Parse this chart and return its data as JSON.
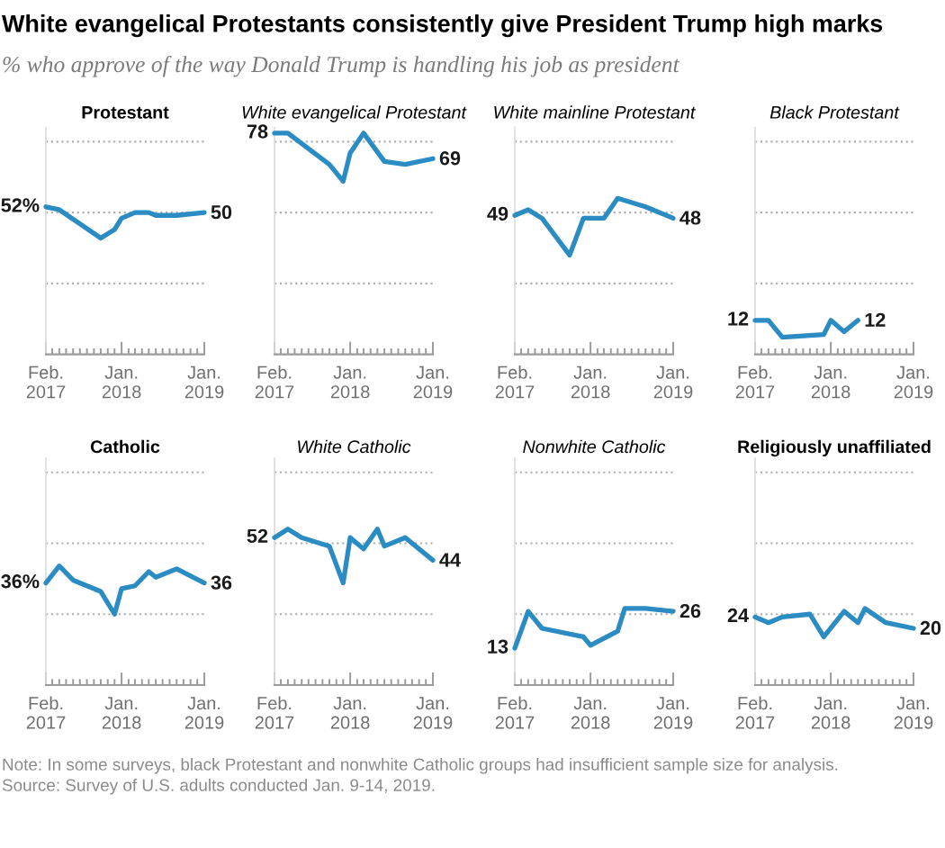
{
  "chart_data": [
    {
      "type": "other",
      "title": "White evangelical Protestants consistently give President Trump high marks",
      "subtitle": "% who approve of the way Donald Trump is handling his job as president"
    },
    {
      "type": "line",
      "title": "Protestant",
      "x": [
        "2017-02",
        "2017-04",
        "2017-10",
        "2017-12",
        "2018-01",
        "2018-03",
        "2018-05",
        "2018-06",
        "2018-09",
        "2019-01"
      ],
      "values": [
        52,
        51,
        41,
        44,
        48,
        50,
        50,
        49,
        49,
        50
      ],
      "value_labels": [
        "52%",
        null,
        null,
        null,
        null,
        null,
        null,
        null,
        null,
        "50"
      ],
      "color": "#2b8cc4",
      "xlim": [
        "2017-02",
        "2019-01"
      ],
      "xticks": [
        {
          "value": "2017-02",
          "label": "Feb.\n2017"
        },
        {
          "value": "2017-03",
          "label": null
        },
        {
          "value": "2017-04",
          "label": null
        },
        {
          "value": "2017-05",
          "label": null
        },
        {
          "value": "2017-06",
          "label": null
        },
        {
          "value": "2017-07",
          "label": null
        },
        {
          "value": "2017-08",
          "label": null
        },
        {
          "value": "2017-09",
          "label": null
        },
        {
          "value": "2017-10",
          "label": null
        },
        {
          "value": "2017-11",
          "label": null
        },
        {
          "value": "2017-12",
          "label": null
        },
        {
          "value": "2018-01",
          "label": "Jan.\n2018"
        },
        {
          "value": "2018-02",
          "label": null
        },
        {
          "value": "2018-03",
          "label": null
        },
        {
          "value": "2018-04",
          "label": null
        },
        {
          "value": "2018-05",
          "label": null
        },
        {
          "value": "2018-06",
          "label": null
        },
        {
          "value": "2018-07",
          "label": null
        },
        {
          "value": "2018-08",
          "label": null
        },
        {
          "value": "2018-09",
          "label": null
        },
        {
          "value": "2018-10",
          "label": null
        },
        {
          "value": "2018-11",
          "label": null
        },
        {
          "value": "2018-12",
          "label": null
        },
        {
          "value": "2019-01",
          "label": "Jan.\n2019"
        }
      ],
      "ylim": [
        0,
        80
      ],
      "yticks": [
        {
          "value": 25,
          "label": null
        },
        {
          "value": 50,
          "label": null
        },
        {
          "value": 75,
          "label": null
        }
      ],
      "grid": "y",
      "tick_labels": "x"
    },
    {
      "type": "line",
      "title": "White evangelical Protestant",
      "x": [
        "2017-02",
        "2017-04",
        "2017-10",
        "2017-12",
        "2018-01",
        "2018-03",
        "2018-06",
        "2018-09",
        "2019-01"
      ],
      "values": [
        78,
        78,
        67,
        61,
        71,
        78,
        68,
        67,
        69
      ],
      "value_labels": [
        "78",
        null,
        null,
        null,
        null,
        null,
        null,
        null,
        "69"
      ],
      "color": "#2b8cc4",
      "xlim": [
        "2017-02",
        "2019-01"
      ],
      "xticks": [
        {
          "value": "2017-02",
          "label": "Feb.\n2017"
        },
        {
          "value": "2017-03",
          "label": null
        },
        {
          "value": "2017-04",
          "label": null
        },
        {
          "value": "2017-05",
          "label": null
        },
        {
          "value": "2017-06",
          "label": null
        },
        {
          "value": "2017-07",
          "label": null
        },
        {
          "value": "2017-08",
          "label": null
        },
        {
          "value": "2017-09",
          "label": null
        },
        {
          "value": "2017-10",
          "label": null
        },
        {
          "value": "2017-11",
          "label": null
        },
        {
          "value": "2017-12",
          "label": null
        },
        {
          "value": "2018-01",
          "label": "Jan.\n2018"
        },
        {
          "value": "2018-02",
          "label": null
        },
        {
          "value": "2018-03",
          "label": null
        },
        {
          "value": "2018-04",
          "label": null
        },
        {
          "value": "2018-05",
          "label": null
        },
        {
          "value": "2018-06",
          "label": null
        },
        {
          "value": "2018-07",
          "label": null
        },
        {
          "value": "2018-08",
          "label": null
        },
        {
          "value": "2018-09",
          "label": null
        },
        {
          "value": "2018-10",
          "label": null
        },
        {
          "value": "2018-11",
          "label": null
        },
        {
          "value": "2018-12",
          "label": null
        },
        {
          "value": "2019-01",
          "label": "Jan.\n2019"
        }
      ],
      "ylim": [
        0,
        80
      ],
      "yticks": [
        {
          "value": 25,
          "label": null
        },
        {
          "value": 50,
          "label": null
        },
        {
          "value": 75,
          "label": null
        }
      ],
      "grid": "y",
      "tick_labels": "x"
    },
    {
      "type": "line",
      "title": "White mainline Protestant",
      "x": [
        "2017-02",
        "2017-04",
        "2017-06",
        "2017-10",
        "2017-12",
        "2018-03",
        "2018-05",
        "2018-09",
        "2019-01"
      ],
      "values": [
        49,
        51,
        48,
        35,
        48,
        48,
        55,
        52,
        48
      ],
      "value_labels": [
        "49",
        null,
        null,
        null,
        null,
        null,
        null,
        null,
        "48"
      ],
      "color": "#2b8cc4",
      "xlim": [
        "2017-02",
        "2019-01"
      ],
      "xticks": [
        {
          "value": "2017-02",
          "label": "Feb.\n2017"
        },
        {
          "value": "2017-03",
          "label": null
        },
        {
          "value": "2017-04",
          "label": null
        },
        {
          "value": "2017-05",
          "label": null
        },
        {
          "value": "2017-06",
          "label": null
        },
        {
          "value": "2017-07",
          "label": null
        },
        {
          "value": "2017-08",
          "label": null
        },
        {
          "value": "2017-09",
          "label": null
        },
        {
          "value": "2017-10",
          "label": null
        },
        {
          "value": "2017-11",
          "label": null
        },
        {
          "value": "2017-12",
          "label": null
        },
        {
          "value": "2018-01",
          "label": "Jan.\n2018"
        },
        {
          "value": "2018-02",
          "label": null
        },
        {
          "value": "2018-03",
          "label": null
        },
        {
          "value": "2018-04",
          "label": null
        },
        {
          "value": "2018-05",
          "label": null
        },
        {
          "value": "2018-06",
          "label": null
        },
        {
          "value": "2018-07",
          "label": null
        },
        {
          "value": "2018-08",
          "label": null
        },
        {
          "value": "2018-09",
          "label": null
        },
        {
          "value": "2018-10",
          "label": null
        },
        {
          "value": "2018-11",
          "label": null
        },
        {
          "value": "2018-12",
          "label": null
        },
        {
          "value": "2019-01",
          "label": "Jan.\n2019"
        }
      ],
      "ylim": [
        0,
        80
      ],
      "yticks": [
        {
          "value": 25,
          "label": null
        },
        {
          "value": 50,
          "label": null
        },
        {
          "value": 75,
          "label": null
        }
      ],
      "grid": "y",
      "tick_labels": "x"
    },
    {
      "type": "line",
      "title": "Black Protestant",
      "x": [
        "2017-02",
        "2017-04",
        "2017-06",
        "2017-12",
        "2018-01",
        "2018-03",
        "2018-05"
      ],
      "values": [
        12,
        12,
        6,
        7,
        12,
        8,
        12
      ],
      "value_labels": [
        "12",
        null,
        null,
        null,
        null,
        null,
        "12"
      ],
      "color": "#2b8cc4",
      "xlim": [
        "2017-02",
        "2019-01"
      ],
      "xticks": [
        {
          "value": "2017-02",
          "label": "Feb.\n2017"
        },
        {
          "value": "2017-03",
          "label": null
        },
        {
          "value": "2017-04",
          "label": null
        },
        {
          "value": "2017-05",
          "label": null
        },
        {
          "value": "2017-06",
          "label": null
        },
        {
          "value": "2017-07",
          "label": null
        },
        {
          "value": "2017-08",
          "label": null
        },
        {
          "value": "2017-09",
          "label": null
        },
        {
          "value": "2017-10",
          "label": null
        },
        {
          "value": "2017-11",
          "label": null
        },
        {
          "value": "2017-12",
          "label": null
        },
        {
          "value": "2018-01",
          "label": "Jan.\n2018"
        },
        {
          "value": "2018-02",
          "label": null
        },
        {
          "value": "2018-03",
          "label": null
        },
        {
          "value": "2018-04",
          "label": null
        },
        {
          "value": "2018-05",
          "label": null
        },
        {
          "value": "2018-06",
          "label": null
        },
        {
          "value": "2018-07",
          "label": null
        },
        {
          "value": "2018-08",
          "label": null
        },
        {
          "value": "2018-09",
          "label": null
        },
        {
          "value": "2018-10",
          "label": null
        },
        {
          "value": "2018-11",
          "label": null
        },
        {
          "value": "2018-12",
          "label": null
        },
        {
          "value": "2019-01",
          "label": "Jan.\n2019"
        }
      ],
      "ylim": [
        0,
        80
      ],
      "yticks": [
        {
          "value": 25,
          "label": null
        },
        {
          "value": 50,
          "label": null
        },
        {
          "value": 75,
          "label": null
        }
      ],
      "grid": "y",
      "tick_labels": "x"
    },
    {
      "type": "line",
      "title": "Catholic",
      "x": [
        "2017-02",
        "2017-04",
        "2017-06",
        "2017-10",
        "2017-12",
        "2018-01",
        "2018-03",
        "2018-05",
        "2018-06",
        "2018-09",
        "2019-01"
      ],
      "values": [
        36,
        42,
        37,
        33,
        25,
        34,
        35,
        40,
        38,
        41,
        36
      ],
      "value_labels": [
        "36%",
        null,
        null,
        null,
        null,
        null,
        null,
        null,
        null,
        null,
        "36"
      ],
      "color": "#2b8cc4",
      "xlim": [
        "2017-02",
        "2019-01"
      ],
      "xticks": [
        {
          "value": "2017-02",
          "label": "Feb.\n2017"
        },
        {
          "value": "2017-03",
          "label": null
        },
        {
          "value": "2017-04",
          "label": null
        },
        {
          "value": "2017-05",
          "label": null
        },
        {
          "value": "2017-06",
          "label": null
        },
        {
          "value": "2017-07",
          "label": null
        },
        {
          "value": "2017-08",
          "label": null
        },
        {
          "value": "2017-09",
          "label": null
        },
        {
          "value": "2017-10",
          "label": null
        },
        {
          "value": "2017-11",
          "label": null
        },
        {
          "value": "2017-12",
          "label": null
        },
        {
          "value": "2018-01",
          "label": "Jan.\n2018"
        },
        {
          "value": "2018-02",
          "label": null
        },
        {
          "value": "2018-03",
          "label": null
        },
        {
          "value": "2018-04",
          "label": null
        },
        {
          "value": "2018-05",
          "label": null
        },
        {
          "value": "2018-06",
          "label": null
        },
        {
          "value": "2018-07",
          "label": null
        },
        {
          "value": "2018-08",
          "label": null
        },
        {
          "value": "2018-09",
          "label": null
        },
        {
          "value": "2018-10",
          "label": null
        },
        {
          "value": "2018-11",
          "label": null
        },
        {
          "value": "2018-12",
          "label": null
        },
        {
          "value": "2019-01",
          "label": "Jan.\n2019"
        }
      ],
      "ylim": [
        0,
        80
      ],
      "yticks": [
        {
          "value": 25,
          "label": null
        },
        {
          "value": 50,
          "label": null
        },
        {
          "value": 75,
          "label": null
        }
      ],
      "grid": "y",
      "tick_labels": "x"
    },
    {
      "type": "line",
      "title": "White Catholic",
      "x": [
        "2017-02",
        "2017-04",
        "2017-06",
        "2017-10",
        "2017-12",
        "2018-01",
        "2018-03",
        "2018-05",
        "2018-06",
        "2018-09",
        "2019-01"
      ],
      "values": [
        52,
        55,
        52,
        49,
        36,
        52,
        48,
        55,
        49,
        52,
        44
      ],
      "value_labels": [
        "52",
        null,
        null,
        null,
        null,
        null,
        null,
        null,
        null,
        null,
        "44"
      ],
      "color": "#2b8cc4",
      "xlim": [
        "2017-02",
        "2019-01"
      ],
      "xticks": [
        {
          "value": "2017-02",
          "label": "Feb.\n2017"
        },
        {
          "value": "2017-03",
          "label": null
        },
        {
          "value": "2017-04",
          "label": null
        },
        {
          "value": "2017-05",
          "label": null
        },
        {
          "value": "2017-06",
          "label": null
        },
        {
          "value": "2017-07",
          "label": null
        },
        {
          "value": "2017-08",
          "label": null
        },
        {
          "value": "2017-09",
          "label": null
        },
        {
          "value": "2017-10",
          "label": null
        },
        {
          "value": "2017-11",
          "label": null
        },
        {
          "value": "2017-12",
          "label": null
        },
        {
          "value": "2018-01",
          "label": "Jan.\n2018"
        },
        {
          "value": "2018-02",
          "label": null
        },
        {
          "value": "2018-03",
          "label": null
        },
        {
          "value": "2018-04",
          "label": null
        },
        {
          "value": "2018-05",
          "label": null
        },
        {
          "value": "2018-06",
          "label": null
        },
        {
          "value": "2018-07",
          "label": null
        },
        {
          "value": "2018-08",
          "label": null
        },
        {
          "value": "2018-09",
          "label": null
        },
        {
          "value": "2018-10",
          "label": null
        },
        {
          "value": "2018-11",
          "label": null
        },
        {
          "value": "2018-12",
          "label": null
        },
        {
          "value": "2019-01",
          "label": "Jan.\n2019"
        }
      ],
      "ylim": [
        0,
        80
      ],
      "yticks": [
        {
          "value": 25,
          "label": null
        },
        {
          "value": 50,
          "label": null
        },
        {
          "value": 75,
          "label": null
        }
      ],
      "grid": "y",
      "tick_labels": "x"
    },
    {
      "type": "line",
      "title": "Nonwhite Catholic",
      "x": [
        "2017-02",
        "2017-04",
        "2017-06",
        "2017-12",
        "2018-01",
        "2018-05",
        "2018-06",
        "2018-09",
        "2019-01"
      ],
      "values": [
        13,
        26,
        20,
        17,
        14,
        19,
        27,
        27,
        26
      ],
      "value_labels": [
        "13",
        null,
        null,
        null,
        null,
        null,
        null,
        null,
        "26"
      ],
      "color": "#2b8cc4",
      "xlim": [
        "2017-02",
        "2019-01"
      ],
      "xticks": [
        {
          "value": "2017-02",
          "label": "Feb.\n2017"
        },
        {
          "value": "2017-03",
          "label": null
        },
        {
          "value": "2017-04",
          "label": null
        },
        {
          "value": "2017-05",
          "label": null
        },
        {
          "value": "2017-06",
          "label": null
        },
        {
          "value": "2017-07",
          "label": null
        },
        {
          "value": "2017-08",
          "label": null
        },
        {
          "value": "2017-09",
          "label": null
        },
        {
          "value": "2017-10",
          "label": null
        },
        {
          "value": "2017-11",
          "label": null
        },
        {
          "value": "2017-12",
          "label": null
        },
        {
          "value": "2018-01",
          "label": "Jan.\n2018"
        },
        {
          "value": "2018-02",
          "label": null
        },
        {
          "value": "2018-03",
          "label": null
        },
        {
          "value": "2018-04",
          "label": null
        },
        {
          "value": "2018-05",
          "label": null
        },
        {
          "value": "2018-06",
          "label": null
        },
        {
          "value": "2018-07",
          "label": null
        },
        {
          "value": "2018-08",
          "label": null
        },
        {
          "value": "2018-09",
          "label": null
        },
        {
          "value": "2018-10",
          "label": null
        },
        {
          "value": "2018-11",
          "label": null
        },
        {
          "value": "2018-12",
          "label": null
        },
        {
          "value": "2019-01",
          "label": "Jan.\n2019"
        }
      ],
      "ylim": [
        0,
        80
      ],
      "yticks": [
        {
          "value": 25,
          "label": null
        },
        {
          "value": 50,
          "label": null
        },
        {
          "value": 75,
          "label": null
        }
      ],
      "grid": "y",
      "tick_labels": "x"
    },
    {
      "type": "line",
      "title": "Religiously unaffiliated",
      "x": [
        "2017-02",
        "2017-04",
        "2017-06",
        "2017-10",
        "2017-12",
        "2018-03",
        "2018-05",
        "2018-06",
        "2018-09",
        "2019-01"
      ],
      "values": [
        24,
        22,
        24,
        25,
        17,
        26,
        22,
        27,
        22,
        20
      ],
      "value_labels": [
        "24",
        null,
        null,
        null,
        null,
        null,
        null,
        null,
        null,
        "20"
      ],
      "color": "#2b8cc4",
      "xlim": [
        "2017-02",
        "2019-01"
      ],
      "xticks": [
        {
          "value": "2017-02",
          "label": "Feb.\n2017"
        },
        {
          "value": "2017-03",
          "label": null
        },
        {
          "value": "2017-04",
          "label": null
        },
        {
          "value": "2017-05",
          "label": null
        },
        {
          "value": "2017-06",
          "label": null
        },
        {
          "value": "2017-07",
          "label": null
        },
        {
          "value": "2017-08",
          "label": null
        },
        {
          "value": "2017-09",
          "label": null
        },
        {
          "value": "2017-10",
          "label": null
        },
        {
          "value": "2017-11",
          "label": null
        },
        {
          "value": "2017-12",
          "label": null
        },
        {
          "value": "2018-01",
          "label": "Jan.\n2018"
        },
        {
          "value": "2018-02",
          "label": null
        },
        {
          "value": "2018-03",
          "label": null
        },
        {
          "value": "2018-04",
          "label": null
        },
        {
          "value": "2018-05",
          "label": null
        },
        {
          "value": "2018-06",
          "label": null
        },
        {
          "value": "2018-07",
          "label": null
        },
        {
          "value": "2018-08",
          "label": null
        },
        {
          "value": "2018-09",
          "label": null
        },
        {
          "value": "2018-10",
          "label": null
        },
        {
          "value": "2018-11",
          "label": null
        },
        {
          "value": "2018-12",
          "label": null
        },
        {
          "value": "2019-01",
          "label": "Jan.\n2019"
        }
      ],
      "ylim": [
        0,
        80
      ],
      "yticks": [
        {
          "value": 25,
          "label": null
        },
        {
          "value": 50,
          "label": null
        },
        {
          "value": 75,
          "label": null
        }
      ],
      "grid": "y",
      "tick_labels": "x"
    },
    {
      "type": "other",
      "annotations": [
        "Note: In some surveys, black Protestant and nonwhite Catholic groups had insufficient sample size for analysis.",
        "Source: Survey of U.S. adults conducted Jan. 9-14, 2019."
      ]
    }
  ]
}
